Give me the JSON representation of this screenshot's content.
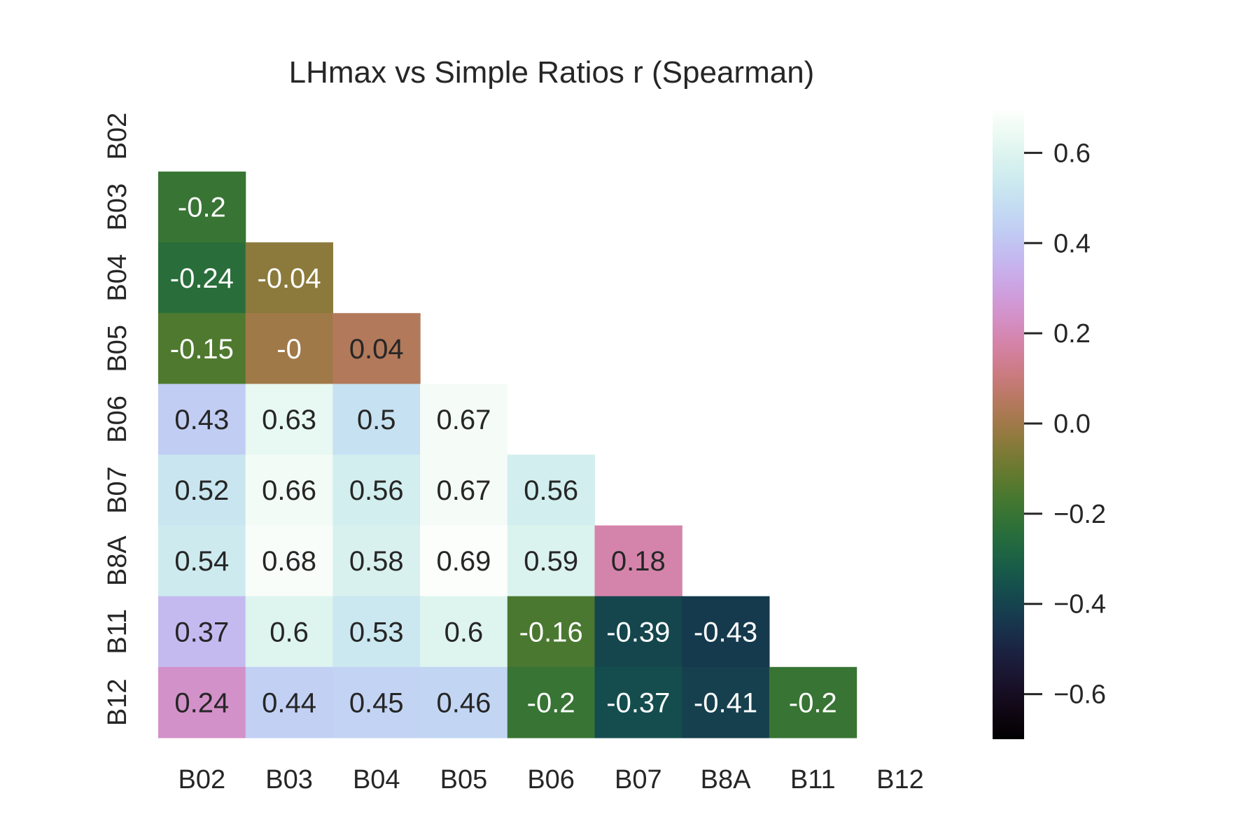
{
  "chart_data": {
    "type": "heatmap",
    "title": "LHmax vs Simple Ratios r (Spearman)",
    "xlabel": "",
    "ylabel": "",
    "x_categories": [
      "B02",
      "B03",
      "B04",
      "B05",
      "B06",
      "B07",
      "B8A",
      "B11",
      "B12"
    ],
    "y_categories": [
      "B02",
      "B03",
      "B04",
      "B05",
      "B06",
      "B07",
      "B8A",
      "B11",
      "B12"
    ],
    "mask": "upper-triangle including diagonal",
    "cells": [
      {
        "x": "B02",
        "y": "B03",
        "value": -0.2,
        "label": "-0.2"
      },
      {
        "x": "B02",
        "y": "B04",
        "value": -0.24,
        "label": "-0.24"
      },
      {
        "x": "B03",
        "y": "B04",
        "value": -0.04,
        "label": "-0.04"
      },
      {
        "x": "B02",
        "y": "B05",
        "value": -0.15,
        "label": "-0.15"
      },
      {
        "x": "B03",
        "y": "B05",
        "value": 0.0,
        "label": "-0"
      },
      {
        "x": "B04",
        "y": "B05",
        "value": 0.04,
        "label": "0.04"
      },
      {
        "x": "B02",
        "y": "B06",
        "value": 0.43,
        "label": "0.43"
      },
      {
        "x": "B03",
        "y": "B06",
        "value": 0.63,
        "label": "0.63"
      },
      {
        "x": "B04",
        "y": "B06",
        "value": 0.5,
        "label": "0.5"
      },
      {
        "x": "B05",
        "y": "B06",
        "value": 0.67,
        "label": "0.67"
      },
      {
        "x": "B02",
        "y": "B07",
        "value": 0.52,
        "label": "0.52"
      },
      {
        "x": "B03",
        "y": "B07",
        "value": 0.66,
        "label": "0.66"
      },
      {
        "x": "B04",
        "y": "B07",
        "value": 0.56,
        "label": "0.56"
      },
      {
        "x": "B05",
        "y": "B07",
        "value": 0.67,
        "label": "0.67"
      },
      {
        "x": "B06",
        "y": "B07",
        "value": 0.56,
        "label": "0.56"
      },
      {
        "x": "B02",
        "y": "B8A",
        "value": 0.54,
        "label": "0.54"
      },
      {
        "x": "B03",
        "y": "B8A",
        "value": 0.68,
        "label": "0.68"
      },
      {
        "x": "B04",
        "y": "B8A",
        "value": 0.58,
        "label": "0.58"
      },
      {
        "x": "B05",
        "y": "B8A",
        "value": 0.69,
        "label": "0.69"
      },
      {
        "x": "B06",
        "y": "B8A",
        "value": 0.59,
        "label": "0.59"
      },
      {
        "x": "B07",
        "y": "B8A",
        "value": 0.18,
        "label": "0.18"
      },
      {
        "x": "B02",
        "y": "B11",
        "value": 0.37,
        "label": "0.37"
      },
      {
        "x": "B03",
        "y": "B11",
        "value": 0.6,
        "label": "0.6"
      },
      {
        "x": "B04",
        "y": "B11",
        "value": 0.53,
        "label": "0.53"
      },
      {
        "x": "B05",
        "y": "B11",
        "value": 0.6,
        "label": "0.6"
      },
      {
        "x": "B06",
        "y": "B11",
        "value": -0.16,
        "label": "-0.16"
      },
      {
        "x": "B07",
        "y": "B11",
        "value": -0.39,
        "label": "-0.39"
      },
      {
        "x": "B8A",
        "y": "B11",
        "value": -0.43,
        "label": "-0.43"
      },
      {
        "x": "B02",
        "y": "B12",
        "value": 0.24,
        "label": "0.24"
      },
      {
        "x": "B03",
        "y": "B12",
        "value": 0.44,
        "label": "0.44"
      },
      {
        "x": "B04",
        "y": "B12",
        "value": 0.45,
        "label": "0.45"
      },
      {
        "x": "B05",
        "y": "B12",
        "value": 0.46,
        "label": "0.46"
      },
      {
        "x": "B06",
        "y": "B12",
        "value": -0.2,
        "label": "-0.2"
      },
      {
        "x": "B07",
        "y": "B12",
        "value": -0.37,
        "label": "-0.37"
      },
      {
        "x": "B8A",
        "y": "B12",
        "value": -0.41,
        "label": "-0.41"
      },
      {
        "x": "B11",
        "y": "B12",
        "value": -0.2,
        "label": "-0.2"
      }
    ],
    "colorbar": {
      "colormap": "cubehelix",
      "vmin": -0.7,
      "vmax": 0.7,
      "ticks": [
        -0.6,
        -0.4,
        -0.2,
        0.0,
        0.2,
        0.4,
        0.6
      ],
      "tick_labels": [
        "−0.6",
        "−0.4",
        "−0.2",
        "0.0",
        "0.2",
        "0.4",
        "0.6"
      ]
    },
    "grid": false,
    "legend": "colorbar right"
  }
}
